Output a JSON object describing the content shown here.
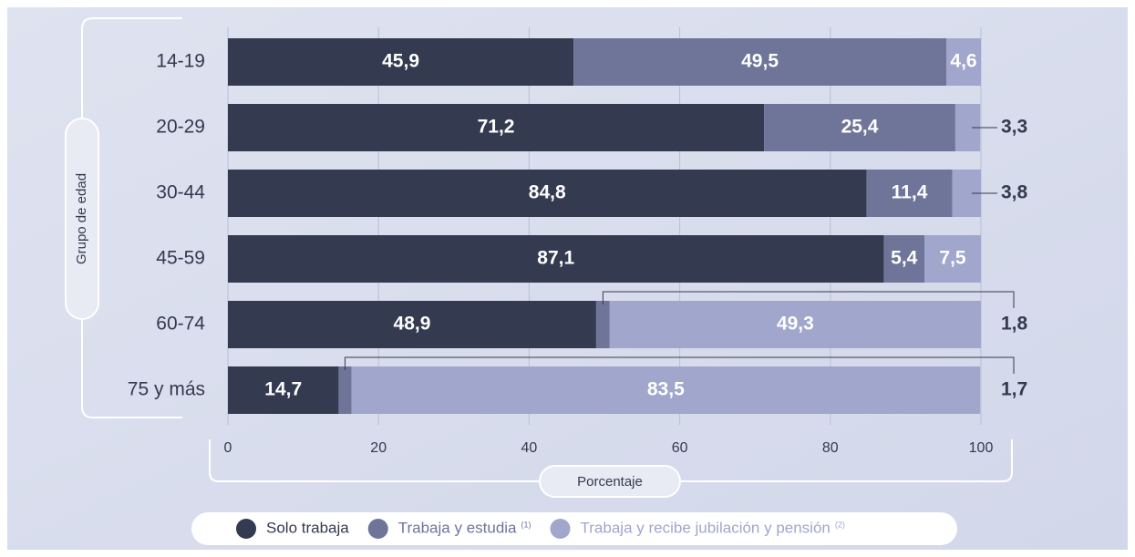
{
  "chart_data": {
    "type": "stacked-bar-horizontal",
    "x_label": "Porcentaje",
    "y_label": "Grupo de edad",
    "categories": [
      "14-19",
      "20-29",
      "30-44",
      "45-59",
      "60-74",
      "75 y más"
    ],
    "series": [
      {
        "name": "Solo trabaja",
        "color": "#343a4f",
        "values": [
          45.9,
          71.2,
          84.8,
          87.1,
          48.9,
          14.7
        ],
        "value_labels": [
          "45,9",
          "71,2",
          "84,8",
          "87,1",
          "48,9",
          "14,7"
        ]
      },
      {
        "name": "Trabaja y estudia",
        "note": "(1)",
        "color": "#6e7599",
        "values": [
          49.5,
          25.4,
          11.4,
          5.4,
          1.8,
          1.7
        ],
        "value_labels": [
          "49,5",
          "25,4",
          "11,4",
          "5,4",
          "1,8",
          "1,7"
        ]
      },
      {
        "name": "Trabaja y recibe jubilación y pensión",
        "note": "(2)",
        "color": "#a0a6cc",
        "values": [
          4.6,
          3.3,
          3.8,
          7.5,
          49.3,
          83.5
        ],
        "value_labels": [
          "4,6",
          "3,3",
          "3,8",
          "7,5",
          "49,3",
          "83,5"
        ]
      }
    ],
    "xlim": [
      0,
      100
    ],
    "xticks": [
      0,
      20,
      40,
      60,
      80,
      100
    ],
    "grid": true,
    "legend": "bottom"
  }
}
